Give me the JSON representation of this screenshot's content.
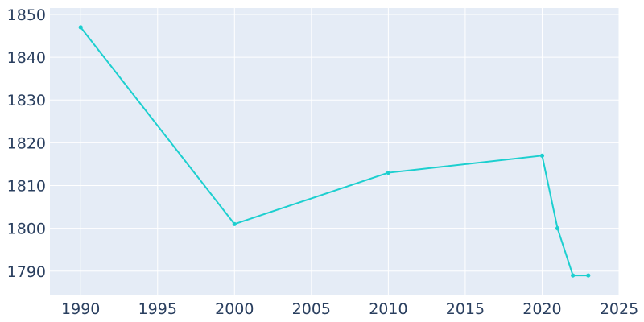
{
  "chart_data": {
    "type": "line",
    "title": "",
    "xlabel": "",
    "ylabel": "",
    "xlim": [
      1988,
      2025
    ],
    "ylim": [
      1784.5,
      1851.5
    ],
    "xticks": [
      1990,
      1995,
      2000,
      2005,
      2010,
      2015,
      2020,
      2025
    ],
    "yticks": [
      1790,
      1800,
      1810,
      1820,
      1830,
      1840,
      1850
    ],
    "grid": true,
    "legend": "none",
    "colors": {
      "plot_background": "#e5ecf6",
      "line": "#1ccfcf",
      "text": "#2a3f5f",
      "grid": "#ffffff"
    },
    "series": [
      {
        "x": [
          1990,
          2000,
          2010,
          2020,
          2021,
          2022,
          2023
        ],
        "values": [
          1847,
          1801,
          1813,
          1817,
          1800,
          1789,
          1789
        ]
      }
    ]
  }
}
